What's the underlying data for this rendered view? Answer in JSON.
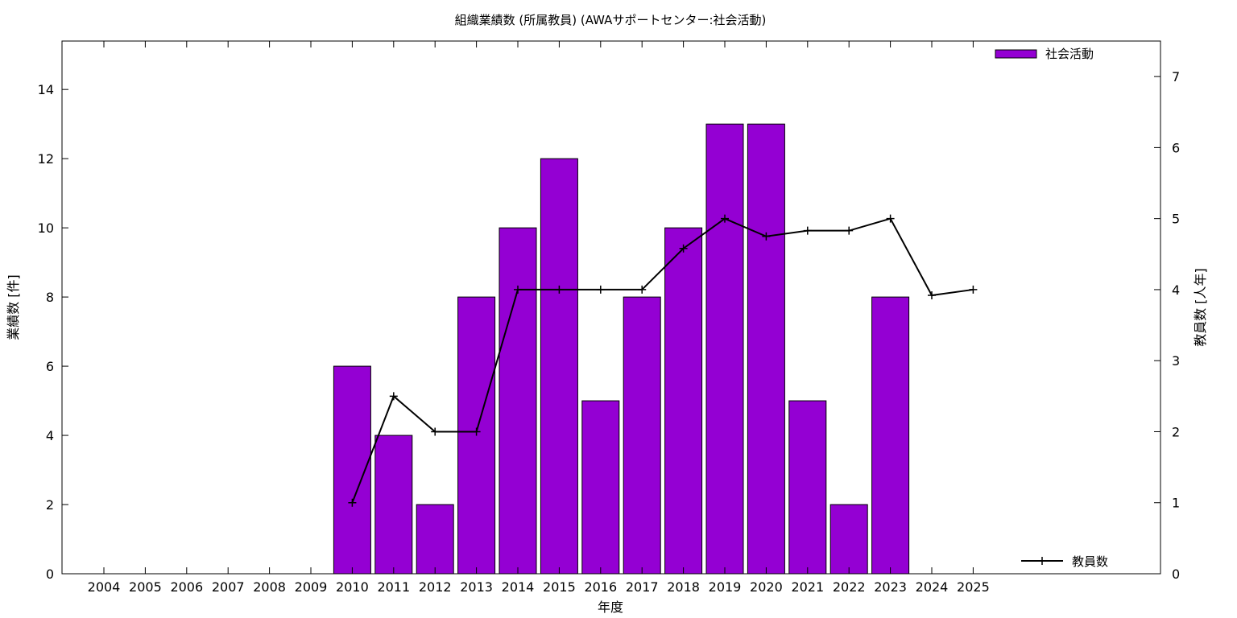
{
  "chart_data": {
    "type": "bar",
    "title": "組織業績数 (所属教員) (AWAサポートセンター:社会活動)",
    "xlabel": "年度",
    "ylabel": "業績数 [件]",
    "y2label": "教員数 [人年]",
    "categories": [
      "2004",
      "2005",
      "2006",
      "2007",
      "2008",
      "2009",
      "2010",
      "2011",
      "2012",
      "2013",
      "2014",
      "2015",
      "2016",
      "2017",
      "2018",
      "2019",
      "2020",
      "2021",
      "2022",
      "2023",
      "2024",
      "2025"
    ],
    "series": [
      {
        "name": "社会活動",
        "kind": "bar",
        "axis": "left",
        "color": "#9400d3",
        "values": [
          0,
          0,
          0,
          0,
          0,
          0,
          6,
          4,
          2,
          8,
          10,
          12,
          5,
          8,
          10,
          13,
          13,
          5,
          2,
          8,
          0,
          0
        ]
      },
      {
        "name": "教員数",
        "kind": "line",
        "axis": "right",
        "color": "#000000",
        "values": [
          null,
          null,
          null,
          null,
          null,
          null,
          1,
          2.5,
          2,
          2,
          4,
          4,
          4,
          4,
          4.58,
          5,
          4.75,
          4.83,
          4.83,
          5,
          3.92,
          4
        ]
      }
    ],
    "ylim": [
      0,
      15.4
    ],
    "y2lim": [
      0,
      7.5
    ],
    "yticks": [
      0,
      2,
      4,
      6,
      8,
      10,
      12,
      14
    ],
    "y2ticks": [
      0,
      1,
      2,
      3,
      4,
      5,
      6,
      7
    ],
    "legend": {
      "bar_position": "top-right",
      "line_position": "bottom-right"
    },
    "grid": false
  }
}
